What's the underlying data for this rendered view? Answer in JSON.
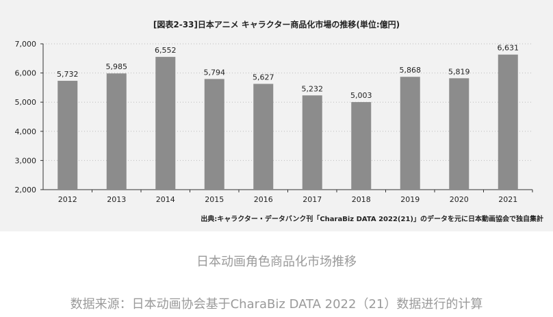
{
  "chart_data": {
    "type": "bar",
    "title": "[図表2-33]日本アニメ キャラクター商品化市場の推移(単位:億円)",
    "categories": [
      "2012",
      "2013",
      "2014",
      "2015",
      "2016",
      "2017",
      "2018",
      "2019",
      "2020",
      "2021"
    ],
    "values": [
      5732,
      5985,
      6552,
      5794,
      5627,
      5232,
      5003,
      5868,
      5819,
      6631
    ],
    "value_labels": [
      "5,732",
      "5,985",
      "6,552",
      "5,794",
      "5,627",
      "5,232",
      "5,003",
      "5,868",
      "5,819",
      "6,631"
    ],
    "ylim": [
      2000,
      7000
    ],
    "yticks": [
      2000,
      3000,
      4000,
      5000,
      6000,
      7000
    ],
    "ytick_labels": [
      "2,000",
      "3,000",
      "4,000",
      "5,000",
      "6,000",
      "7,000"
    ],
    "grid": true,
    "xlabel": "",
    "ylabel": "",
    "source": "出典:キャラクター・データバンク刊「CharaBiz DATA 2022(21)」のデータを元に日本動画協会で独自集計"
  },
  "colors": {
    "bar": "#8c8c8c",
    "grid": "#bbbbbb",
    "axis": "#333333",
    "panel": "#f2f2f2",
    "caption": "#9a9a9a"
  },
  "caption": "日本动画角色商品化市场推移",
  "footnote": "数据来源：日本动画协会基于CharaBiz DATA 2022（21）数据进行的计算"
}
